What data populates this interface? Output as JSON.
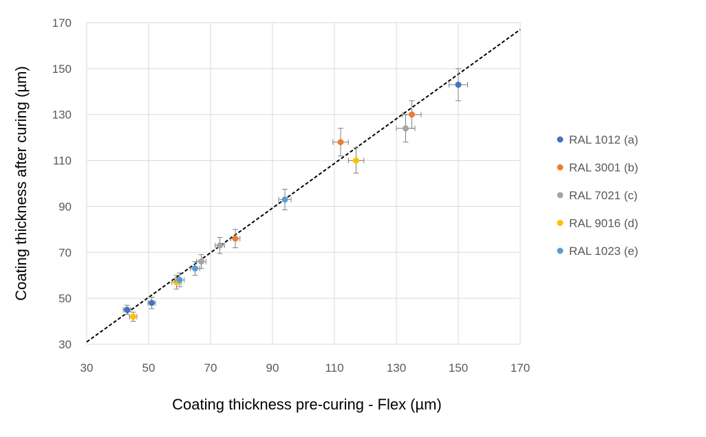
{
  "chart_data": {
    "type": "scatter",
    "xlabel": "Coating thickness pre-curing - Flex (µm)",
    "ylabel": "Coating thickness after curing (µm)",
    "xlim": [
      30,
      170
    ],
    "ylim": [
      30,
      170
    ],
    "xticks": [
      30,
      50,
      70,
      90,
      110,
      130,
      150,
      170
    ],
    "yticks": [
      30,
      50,
      70,
      90,
      110,
      130,
      150,
      170
    ],
    "grid": true,
    "legend_position": "right",
    "reference_line": {
      "style": "dashed",
      "color": "#000000",
      "from": [
        30,
        31
      ],
      "to": [
        170,
        167
      ]
    },
    "series": [
      {
        "name": "RAL 1012 (a)",
        "color": "#4472C4",
        "points": [
          {
            "x": 43,
            "y": 45,
            "xerr": 1.2,
            "yerr": 2
          },
          {
            "x": 51,
            "y": 48,
            "xerr": 1.2,
            "yerr": 2.5
          },
          {
            "x": 150,
            "y": 143,
            "xerr": 3,
            "yerr": 7
          }
        ]
      },
      {
        "name": "RAL 3001 (b)",
        "color": "#ED7D31",
        "points": [
          {
            "x": 78,
            "y": 76,
            "xerr": 1.5,
            "yerr": 4
          },
          {
            "x": 112,
            "y": 118,
            "xerr": 2.5,
            "yerr": 6
          },
          {
            "x": 135,
            "y": 130,
            "xerr": 3,
            "yerr": 6
          }
        ]
      },
      {
        "name": "RAL 7021 (c)",
        "color": "#A5A5A5",
        "points": [
          {
            "x": 67,
            "y": 66,
            "xerr": 1.5,
            "yerr": 3
          },
          {
            "x": 73,
            "y": 73,
            "xerr": 1.5,
            "yerr": 3.5
          },
          {
            "x": 133,
            "y": 124,
            "xerr": 3,
            "yerr": 6
          }
        ]
      },
      {
        "name": "RAL 9016 (d)",
        "color": "#FFC000",
        "points": [
          {
            "x": 45,
            "y": 42,
            "xerr": 1.2,
            "yerr": 2
          },
          {
            "x": 59,
            "y": 57,
            "xerr": 1.5,
            "yerr": 3
          },
          {
            "x": 117,
            "y": 110,
            "xerr": 2.5,
            "yerr": 5.5
          }
        ]
      },
      {
        "name": "RAL 1023 (e)",
        "color": "#5B9BD5",
        "points": [
          {
            "x": 60,
            "y": 58,
            "xerr": 1.5,
            "yerr": 3
          },
          {
            "x": 65,
            "y": 63,
            "xerr": 1.5,
            "yerr": 3
          },
          {
            "x": 94,
            "y": 93,
            "xerr": 2,
            "yerr": 4.5
          }
        ]
      }
    ]
  }
}
